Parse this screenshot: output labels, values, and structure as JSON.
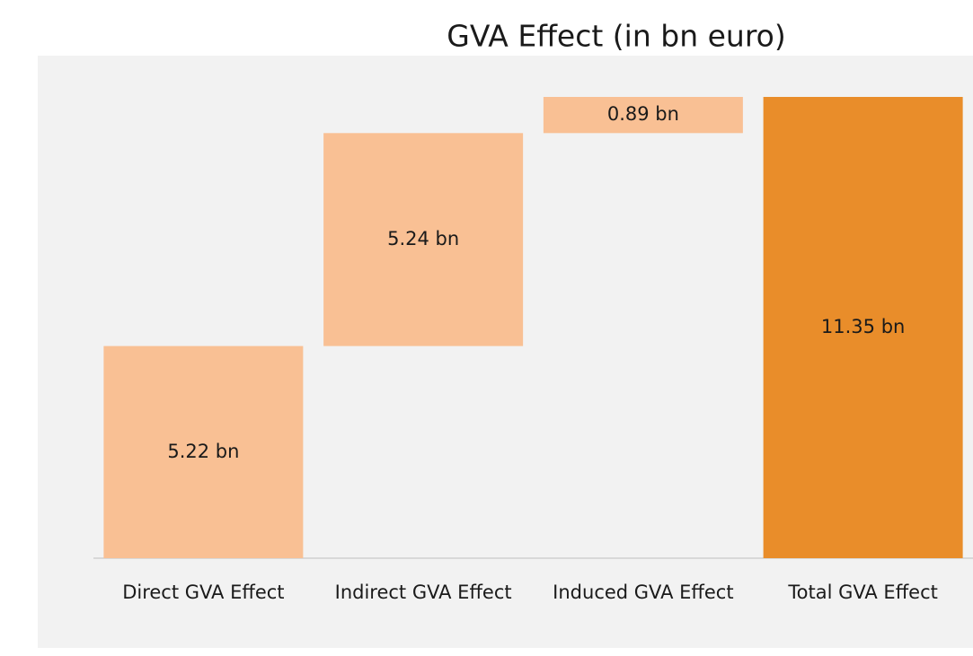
{
  "chart_data": {
    "type": "waterfall",
    "title": "GVA Effect (in bn euro)",
    "categories": [
      "Direct GVA Effect",
      "Indirect GVA Effect",
      "Induced GVA Effect",
      "Total GVA Effect"
    ],
    "values": [
      5.22,
      5.24,
      0.89,
      11.35
    ],
    "value_labels": [
      "5.22 bn",
      "5.24 bn",
      "0.89 bn",
      "11.35 bn"
    ],
    "measure": [
      "relative",
      "relative",
      "relative",
      "total"
    ],
    "colors": [
      "#f9c094",
      "#f9c094",
      "#f9c094",
      "#e98d2a"
    ]
  }
}
